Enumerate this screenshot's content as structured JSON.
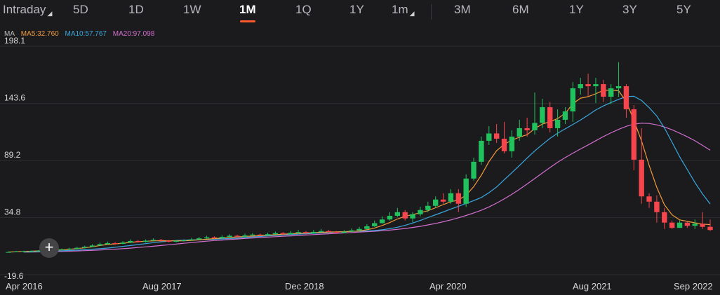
{
  "tabs": [
    {
      "label": "Intraday",
      "caret": true,
      "active": false
    },
    {
      "label": "5D",
      "caret": false,
      "active": false
    },
    {
      "label": "1D",
      "caret": false,
      "active": false
    },
    {
      "label": "1W",
      "caret": false,
      "active": false
    },
    {
      "label": "1M",
      "caret": false,
      "active": true
    },
    {
      "label": "1Q",
      "caret": false,
      "active": false
    },
    {
      "label": "1Y",
      "caret": false,
      "active": false
    },
    {
      "label": "1m",
      "caret": true,
      "active": false
    },
    {
      "label": "3M",
      "caret": false,
      "active": false
    },
    {
      "label": "6M",
      "caret": false,
      "active": false
    },
    {
      "label": "1Y",
      "caret": false,
      "active": false
    },
    {
      "label": "3Y",
      "caret": false,
      "active": false
    },
    {
      "label": "5Y",
      "caret": false,
      "active": false
    }
  ],
  "caret_glyph": "◢",
  "ma_legend": {
    "title": "MA",
    "items": [
      {
        "label": "MA5:32.760",
        "color": "#f29a3b"
      },
      {
        "label": "MA10:57.767",
        "color": "#3aa8e0"
      },
      {
        "label": "MA20:97.098",
        "color": "#d36fd0"
      }
    ]
  },
  "colors": {
    "up": "#21c15e",
    "down": "#f5454d",
    "accent": "#ff5a2b",
    "ma5": "#f29a3b",
    "ma10": "#3aa8e0",
    "ma20": "#d36fd0"
  },
  "crosshair_icon": "+",
  "chart_data": {
    "type": "candlestick",
    "interval": "1M",
    "y_ticks": [
      "198.1",
      "143.6",
      "89.2",
      "34.8",
      "-19.6"
    ],
    "ylim": [
      -19.6,
      198.1
    ],
    "x_ticks": [
      "Apr 2016",
      "Aug 2017",
      "Dec 2018",
      "Apr 2020",
      "Aug 2021",
      "Sep 2022"
    ],
    "candles": [
      [
        2,
        2,
        2.5,
        1.5
      ],
      [
        2,
        2.5,
        3,
        1.8
      ],
      [
        2.5,
        2.8,
        3.2,
        2.2
      ],
      [
        2.8,
        3,
        3.5,
        2.6
      ],
      [
        3,
        3.3,
        3.8,
        2.9
      ],
      [
        3.3,
        3.7,
        4.2,
        3.1
      ],
      [
        3.7,
        4,
        4.6,
        3.5
      ],
      [
        4,
        4.6,
        5.2,
        3.8
      ],
      [
        4.6,
        5.2,
        6,
        4.3
      ],
      [
        5.2,
        6,
        7,
        5
      ],
      [
        6,
        7,
        8,
        5.7
      ],
      [
        7,
        8.2,
        9.5,
        6.8
      ],
      [
        8.2,
        9.5,
        11,
        8
      ],
      [
        9.5,
        10.5,
        12,
        9
      ],
      [
        10.5,
        9.8,
        11.5,
        9
      ],
      [
        9.8,
        11,
        12.5,
        9.5
      ],
      [
        11,
        12.5,
        14,
        10.5
      ],
      [
        12.5,
        11.6,
        13.5,
        11
      ],
      [
        11.6,
        12.8,
        14,
        11
      ],
      [
        12.8,
        13.6,
        15,
        12.2
      ],
      [
        13.6,
        12.8,
        14.5,
        12
      ],
      [
        12.8,
        11.8,
        13.5,
        11.2
      ],
      [
        11.8,
        12.6,
        13.5,
        11.3
      ],
      [
        12.6,
        13.2,
        14,
        12
      ],
      [
        13.2,
        14,
        15.5,
        12.8
      ],
      [
        14,
        15,
        16.5,
        13.5
      ],
      [
        15,
        16,
        17.5,
        14.5
      ],
      [
        16,
        15.2,
        17,
        14.5
      ],
      [
        15.2,
        16.4,
        18,
        15
      ],
      [
        16.4,
        17.5,
        19,
        16
      ],
      [
        17.5,
        16.6,
        18.5,
        16
      ],
      [
        16.6,
        17.8,
        19.5,
        16.2
      ],
      [
        17.8,
        18.6,
        20,
        17.2
      ],
      [
        18.6,
        17.9,
        19.5,
        17
      ],
      [
        17.9,
        19,
        20.5,
        17.5
      ],
      [
        19,
        20,
        21.5,
        18.5
      ],
      [
        20,
        19,
        21,
        18
      ],
      [
        19,
        20.2,
        22,
        18.5
      ],
      [
        20.2,
        21,
        23,
        19.5
      ],
      [
        21,
        20,
        22,
        19
      ],
      [
        20,
        21.2,
        23,
        19.5
      ],
      [
        21.2,
        22,
        24,
        20.5
      ],
      [
        22,
        21.2,
        23,
        20.5
      ],
      [
        21.2,
        20.4,
        22,
        19.8
      ],
      [
        20.4,
        21.5,
        23,
        20
      ],
      [
        21.5,
        22.6,
        24.5,
        21
      ],
      [
        22.6,
        24,
        26,
        22
      ],
      [
        24,
        26.5,
        28.5,
        23.5
      ],
      [
        26.5,
        29.5,
        32,
        26
      ],
      [
        29.5,
        33,
        36,
        29
      ],
      [
        33,
        36.5,
        40,
        32
      ],
      [
        36.5,
        40,
        44,
        35.5
      ],
      [
        40,
        34,
        42,
        32
      ],
      [
        34,
        38,
        40,
        30
      ],
      [
        38,
        42,
        45,
        36
      ],
      [
        42,
        46,
        50,
        40
      ],
      [
        46,
        52,
        55,
        44
      ],
      [
        52,
        50,
        58,
        48
      ],
      [
        50,
        58,
        62,
        48
      ],
      [
        58,
        48,
        62,
        40
      ],
      [
        48,
        72,
        76,
        45
      ],
      [
        72,
        88,
        92,
        70
      ],
      [
        88,
        108,
        112,
        85
      ],
      [
        108,
        115,
        122,
        104
      ],
      [
        115,
        110,
        124,
        106
      ],
      [
        110,
        98,
        126,
        96
      ],
      [
        98,
        112,
        118,
        92
      ],
      [
        112,
        120,
        128,
        108
      ],
      [
        120,
        118,
        130,
        112
      ],
      [
        118,
        125,
        154,
        114
      ],
      [
        125,
        140,
        148,
        120
      ],
      [
        140,
        120,
        145,
        116
      ],
      [
        120,
        128,
        138,
        112
      ],
      [
        128,
        136,
        140,
        124
      ],
      [
        136,
        158,
        164,
        126
      ],
      [
        158,
        162,
        168,
        152
      ],
      [
        162,
        160,
        172,
        150
      ],
      [
        160,
        162,
        168,
        144
      ],
      [
        162,
        150,
        166,
        145
      ],
      [
        150,
        158,
        162,
        143
      ],
      [
        158,
        160,
        183,
        150
      ],
      [
        160,
        138,
        162,
        130
      ],
      [
        138,
        90,
        142,
        80
      ],
      [
        90,
        55,
        120,
        48
      ],
      [
        55,
        50,
        58,
        44
      ],
      [
        50,
        40,
        56,
        30
      ],
      [
        40,
        30,
        44,
        24
      ],
      [
        30,
        25,
        32,
        24
      ],
      [
        25,
        30,
        32,
        26
      ],
      [
        30,
        27,
        31,
        25
      ],
      [
        27,
        29,
        33,
        24
      ],
      [
        29,
        26,
        40,
        24
      ],
      [
        26,
        23,
        33,
        22
      ]
    ],
    "ma5": [
      2,
      2.2,
      2.5,
      2.8,
      3.1,
      3.4,
      3.7,
      4.1,
      4.6,
      5.3,
      6,
      7,
      8.2,
      9.2,
      9.8,
      10.4,
      11.2,
      11.8,
      12.3,
      12.6,
      12.8,
      12.7,
      12.6,
      12.7,
      13,
      13.6,
      14.2,
      14.8,
      15.3,
      15.9,
      16.4,
      16.8,
      17.2,
      17.6,
      18,
      18.5,
      19,
      19.4,
      19.8,
      20.1,
      20.4,
      20.8,
      21.1,
      21.3,
      21.4,
      21.6,
      22.1,
      23.2,
      24.9,
      27.3,
      30.1,
      33.5,
      36,
      37.7,
      39.4,
      41.4,
      44.2,
      47.2,
      49.9,
      51.6,
      56.2,
      64.3,
      75.2,
      88.2,
      98.6,
      104.6,
      108.6,
      111.4,
      113.8,
      119.6,
      124,
      126.2,
      129.2,
      134.2,
      143.3,
      148.6,
      150.1,
      152.8,
      156,
      156.3,
      155.6,
      145.5,
      127.4,
      107.8,
      84.6,
      63.6,
      47,
      37.4,
      32.6,
      31.2,
      29.8,
      28.6,
      28.1
    ],
    "ma10": [
      2,
      2.1,
      2.3,
      2.6,
      2.9,
      3.2,
      3.5,
      3.8,
      4.2,
      4.7,
      5.2,
      5.8,
      6.5,
      7.4,
      8.2,
      9.1,
      10,
      10.9,
      11.7,
      12.4,
      13,
      13.3,
      13.5,
      13.7,
      13.9,
      14.2,
      14.5,
      14.8,
      15.2,
      15.8,
      16.3,
      16.8,
      17.3,
      17.8,
      18.2,
      18.6,
      19,
      19.4,
      19.8,
      20.2,
      20.6,
      21,
      21.4,
      21.7,
      21.9,
      22.1,
      22.5,
      23.2,
      24.2,
      25.6,
      27.4,
      29.6,
      32.1,
      34.8,
      37.5,
      40.2,
      43,
      45.6,
      48.3,
      51,
      54,
      58.5,
      64,
      70.8,
      77.6,
      84.5,
      91.5,
      98.3,
      104.5,
      110.3,
      115.2,
      119.4,
      123.6,
      127.8,
      132.5,
      137.4,
      141.2,
      144.5,
      147.5,
      150.1,
      150.4,
      146.4,
      139.6,
      131.6,
      120.3,
      106.6,
      92.8,
      80.6,
      68.2,
      57.3,
      47.8
    ],
    "ma20": [
      2,
      2,
      2.1,
      2.2,
      2.4,
      2.6,
      2.8,
      3,
      3.3,
      3.6,
      3.9,
      4.3,
      4.7,
      5.2,
      5.7,
      6.3,
      6.9,
      7.5,
      8.2,
      8.9,
      9.6,
      10.3,
      11,
      11.7,
      12.3,
      12.9,
      13.4,
      13.9,
      14.4,
      14.9,
      15.4,
      15.8,
      16.2,
      16.6,
      17,
      17.4,
      17.8,
      18.2,
      18.6,
      19,
      19.4,
      19.8,
      20.2,
      20.6,
      21,
      21.4,
      21.8,
      22.3,
      22.9,
      23.6,
      24.4,
      25.4,
      26.5,
      27.8,
      29.2,
      30.8,
      32.6,
      34.6,
      36.8,
      39.2,
      41.8,
      45,
      48.6,
      52.6,
      57,
      61.8,
      66.8,
      72,
      77.3,
      82.5,
      87.5,
      92,
      96.2,
      100.2,
      104.1,
      108.1,
      112,
      115.6,
      118.9,
      121.8,
      123.9,
      124.8,
      124.5,
      123.2,
      121.2,
      118.5,
      115.3,
      111.8,
      108,
      103.6,
      99
    ]
  }
}
